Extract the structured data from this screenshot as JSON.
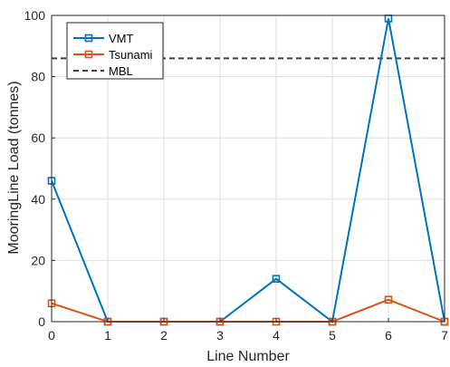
{
  "chart_data": {
    "type": "line",
    "title": "",
    "xlabel": "Line Number",
    "ylabel": "MooringLine Load (tonnes)",
    "x": [
      0,
      1,
      2,
      3,
      4,
      5,
      6,
      7
    ],
    "xlim": [
      0,
      7
    ],
    "ylim": [
      0,
      100
    ],
    "xticks": [
      0,
      1,
      2,
      3,
      4,
      5,
      6,
      7
    ],
    "yticks": [
      0,
      20,
      40,
      60,
      80,
      100
    ],
    "grid": true,
    "legend_position": "top-left",
    "series": [
      {
        "name": "VMT",
        "color": "#0072BD",
        "marker": "square",
        "values": [
          46,
          0,
          0,
          0,
          14,
          0,
          99,
          0
        ]
      },
      {
        "name": "Tsunami",
        "color": "#D95319",
        "marker": "square",
        "values": [
          6,
          0,
          0,
          0,
          0,
          0,
          7.2,
          0
        ]
      }
    ],
    "reference_lines": [
      {
        "name": "MBL",
        "y": 86,
        "color": "#404040",
        "style": "dashed"
      }
    ]
  }
}
